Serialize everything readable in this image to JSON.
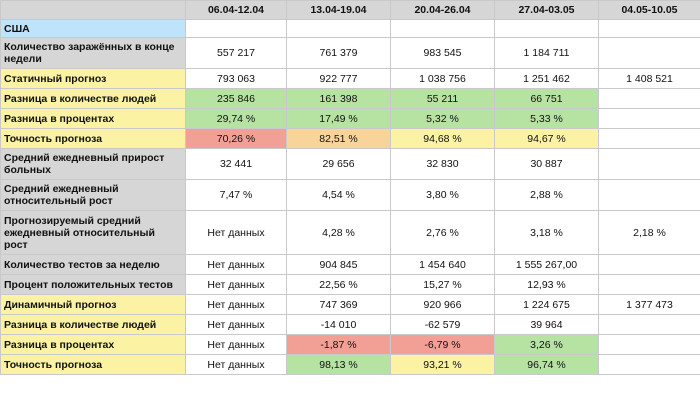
{
  "colors": {
    "header_gray": "#d6d6d6",
    "country_blue": "#bfe3f8",
    "yellow": "#fbf3a3",
    "green": "#b6e3a1",
    "orange": "#f9d49a",
    "red": "#f2a095"
  },
  "table": {
    "columns": [
      "",
      "06.04-12.04",
      "13.04-19.04",
      "20.04-26.04",
      "27.04-03.05",
      "04.05-10.05"
    ],
    "country": "США",
    "rows": [
      {
        "label": "Количество заражённых в конце недели",
        "style": "gray",
        "cells": [
          {
            "v": "557 217"
          },
          {
            "v": "761 379"
          },
          {
            "v": "983 545"
          },
          {
            "v": "1 184 711"
          },
          {
            "v": ""
          }
        ]
      },
      {
        "label": "Статичный прогноз",
        "style": "yellow",
        "cells": [
          {
            "v": "793 063"
          },
          {
            "v": "922 777"
          },
          {
            "v": "1 038 756"
          },
          {
            "v": "1 251 462"
          },
          {
            "v": "1 408 521"
          }
        ]
      },
      {
        "label": "Разница в количестве людей",
        "style": "yellow",
        "cells": [
          {
            "v": "235 846",
            "c": "green"
          },
          {
            "v": "161 398",
            "c": "green"
          },
          {
            "v": "55 211",
            "c": "green"
          },
          {
            "v": "66 751",
            "c": "green"
          },
          {
            "v": ""
          }
        ]
      },
      {
        "label": "Разница в процентах",
        "style": "yellow",
        "cells": [
          {
            "v": "29,74 %",
            "c": "green"
          },
          {
            "v": "17,49 %",
            "c": "green"
          },
          {
            "v": "5,32 %",
            "c": "green"
          },
          {
            "v": "5,33 %",
            "c": "green"
          },
          {
            "v": ""
          }
        ]
      },
      {
        "label": "Точность прогноза",
        "style": "yellow",
        "cells": [
          {
            "v": "70,26 %",
            "c": "red"
          },
          {
            "v": "82,51 %",
            "c": "orange"
          },
          {
            "v": "94,68 %",
            "c": "yellow"
          },
          {
            "v": "94,67 %",
            "c": "yellow"
          },
          {
            "v": ""
          }
        ]
      },
      {
        "label": "Средний ежедневный прирост больных",
        "style": "gray",
        "cells": [
          {
            "v": "32 441"
          },
          {
            "v": "29 656"
          },
          {
            "v": "32 830"
          },
          {
            "v": "30 887"
          },
          {
            "v": ""
          }
        ]
      },
      {
        "label": "Средний ежедневный относительный рост",
        "style": "gray",
        "cells": [
          {
            "v": "7,47 %"
          },
          {
            "v": "4,54 %"
          },
          {
            "v": "3,80 %"
          },
          {
            "v": "2,88 %"
          },
          {
            "v": ""
          }
        ]
      },
      {
        "label": "Прогнозируемый средний ежедневный  относительный рост",
        "style": "gray",
        "cells": [
          {
            "v": "Нет данных"
          },
          {
            "v": "4,28 %"
          },
          {
            "v": "2,76 %"
          },
          {
            "v": "3,18 %"
          },
          {
            "v": "2,18 %"
          }
        ]
      },
      {
        "label": "Количество тестов за неделю",
        "style": "gray",
        "cells": [
          {
            "v": "Нет данных"
          },
          {
            "v": "904 845"
          },
          {
            "v": "1 454 640"
          },
          {
            "v": "1 555 267,00"
          },
          {
            "v": ""
          }
        ]
      },
      {
        "label": "Процент положительных тестов",
        "style": "gray",
        "cells": [
          {
            "v": "Нет данных"
          },
          {
            "v": "22,56 %"
          },
          {
            "v": "15,27 %"
          },
          {
            "v": "12,93 %"
          },
          {
            "v": ""
          }
        ]
      },
      {
        "label": "Динамичный прогноз",
        "style": "yellow",
        "cells": [
          {
            "v": "Нет данных"
          },
          {
            "v": "747 369"
          },
          {
            "v": "920 966"
          },
          {
            "v": "1 224 675"
          },
          {
            "v": "1 377 473"
          }
        ]
      },
      {
        "label": "Разница в количестве людей",
        "style": "yellow",
        "cells": [
          {
            "v": "Нет данных"
          },
          {
            "v": "-14 010"
          },
          {
            "v": "-62 579"
          },
          {
            "v": "39 964"
          },
          {
            "v": ""
          }
        ]
      },
      {
        "label": "Разница в процентах",
        "style": "yellow",
        "cells": [
          {
            "v": "Нет данных"
          },
          {
            "v": "-1,87 %",
            "c": "red"
          },
          {
            "v": "-6,79 %",
            "c": "red"
          },
          {
            "v": "3,26 %",
            "c": "green"
          },
          {
            "v": ""
          }
        ]
      },
      {
        "label": "Точность прогноза",
        "style": "yellow",
        "cells": [
          {
            "v": "Нет данных"
          },
          {
            "v": "98,13 %",
            "c": "green"
          },
          {
            "v": "93,21 %",
            "c": "yellow"
          },
          {
            "v": "96,74 %",
            "c": "green"
          },
          {
            "v": ""
          }
        ]
      }
    ]
  }
}
